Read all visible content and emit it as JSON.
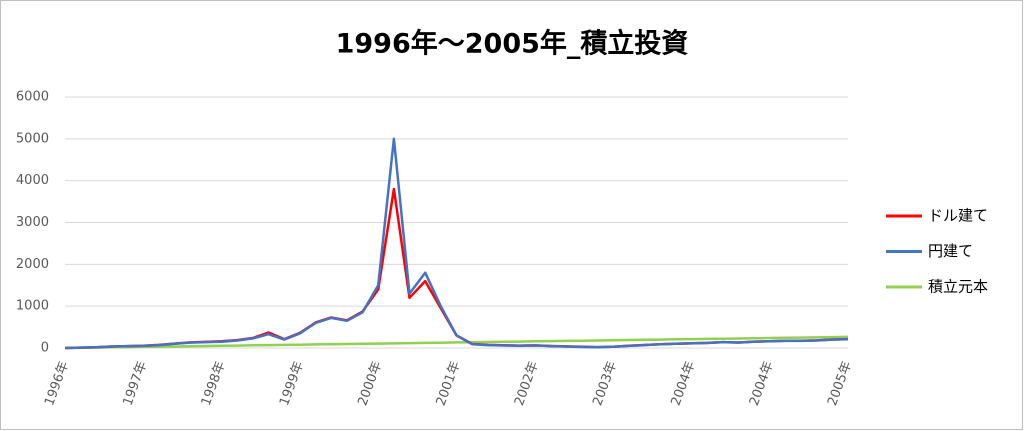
{
  "chart_data": {
    "type": "line",
    "title": "1996年～2005年_積立投資",
    "categories": [
      "1996年",
      null,
      null,
      null,
      null,
      "1997年",
      null,
      null,
      null,
      null,
      "1998年",
      null,
      null,
      null,
      null,
      "1999年",
      null,
      null,
      null,
      null,
      "2000年",
      null,
      null,
      null,
      null,
      "2001年",
      null,
      null,
      null,
      null,
      "2002年",
      null,
      null,
      null,
      null,
      "2003年",
      null,
      null,
      null,
      null,
      "2004年",
      null,
      null,
      null,
      null,
      "2004年",
      null,
      null,
      null,
      null,
      "2005年"
    ],
    "series": [
      {
        "name": "ドル建て",
        "color": "#ff0000",
        "values": [
          0,
          10,
          20,
          35,
          45,
          55,
          75,
          105,
          135,
          145,
          160,
          190,
          240,
          370,
          210,
          360,
          610,
          730,
          660,
          870,
          1400,
          3800,
          1200,
          1600,
          950,
          300,
          95,
          75,
          65,
          58,
          62,
          48,
          38,
          28,
          22,
          32,
          52,
          72,
          92,
          102,
          112,
          122,
          142,
          132,
          152,
          162,
          172,
          172,
          182,
          202,
          212
        ]
      },
      {
        "name": "円建て",
        "color": "#4472c4",
        "values": [
          0,
          10,
          20,
          35,
          45,
          50,
          70,
          100,
          130,
          140,
          150,
          180,
          230,
          330,
          200,
          350,
          600,
          720,
          650,
          850,
          1500,
          5000,
          1300,
          1800,
          1000,
          300,
          90,
          70,
          60,
          55,
          60,
          45,
          35,
          25,
          20,
          30,
          50,
          70,
          90,
          100,
          110,
          120,
          140,
          130,
          150,
          160,
          170,
          170,
          180,
          200,
          210
        ]
      },
      {
        "name": "積立元本",
        "color": "#92d050",
        "values": [
          0,
          5,
          10,
          16,
          21,
          26,
          32,
          37,
          42,
          48,
          53,
          58,
          64,
          69,
          74,
          80,
          85,
          90,
          95,
          101,
          106,
          111,
          117,
          122,
          127,
          133,
          138,
          143,
          148,
          154,
          159,
          164,
          170,
          175,
          180,
          186,
          191,
          196,
          201,
          207,
          212,
          217,
          223,
          228,
          233,
          239,
          244,
          249,
          254,
          260,
          265
        ]
      }
    ],
    "ylim": [
      0,
      6000
    ],
    "yticks": [
      0,
      1000,
      2000,
      3000,
      4000,
      5000,
      6000
    ],
    "grid": true
  }
}
